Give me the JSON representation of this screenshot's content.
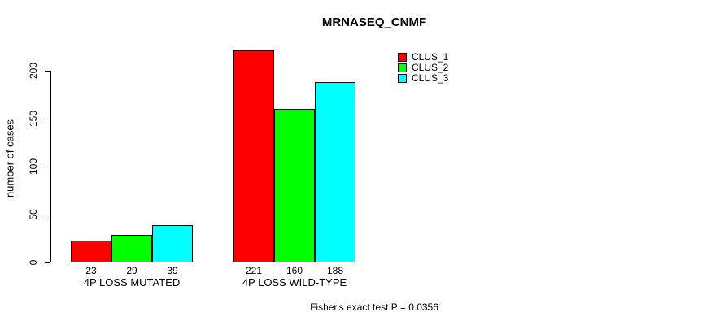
{
  "chart_data": {
    "type": "bar",
    "title": "MRNASEQ_CNMF",
    "xlabel": "",
    "ylabel": "number of cases",
    "categories": [
      "4P LOSS MUTATED",
      "4P LOSS WILD-TYPE"
    ],
    "series": [
      {
        "name": "CLUS_1",
        "color": "#ff0000",
        "values": [
          23,
          221
        ]
      },
      {
        "name": "CLUS_2",
        "color": "#00ff00",
        "values": [
          29,
          160
        ]
      },
      {
        "name": "CLUS_3",
        "color": "#00ffff",
        "values": [
          39,
          188
        ]
      }
    ],
    "bar_value_labels": [
      [
        23,
        29,
        39
      ],
      [
        221,
        160,
        188
      ]
    ],
    "yticks": [
      0,
      50,
      100,
      150,
      200
    ],
    "ylim": [
      0,
      235
    ],
    "grid": false,
    "legend_position": "top-right",
    "annotation": "Fisher's exact test P = 0.0356"
  }
}
